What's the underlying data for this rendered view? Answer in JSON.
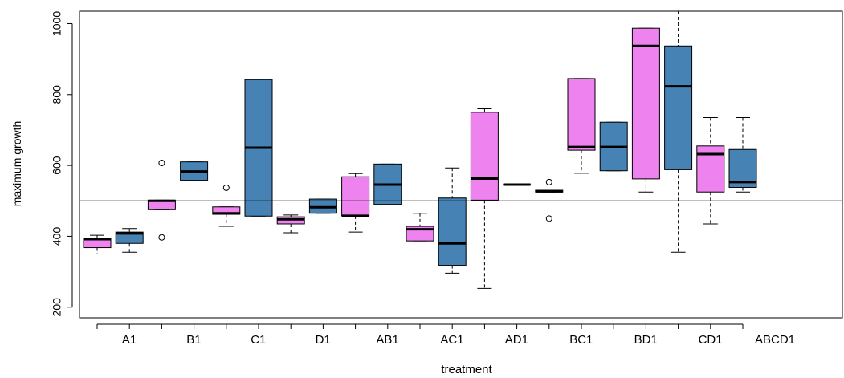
{
  "chart_data": {
    "type": "boxplot",
    "xlabel": "treatment",
    "ylabel": "maximum growth",
    "ylim": [
      170,
      1035
    ],
    "yticks": [
      200,
      400,
      600,
      800,
      1000
    ],
    "x_tick_labels": [
      "A1",
      "B1",
      "C1",
      "D1",
      "AB1",
      "AC1",
      "AD1",
      "BC1",
      "BD1",
      "CD1",
      "ABCD1"
    ],
    "reference_line": 500,
    "colors": {
      "pink": "#ee82ee",
      "blue": "#4682b4"
    },
    "boxes": [
      {
        "group": "A1",
        "fill": "pink",
        "whisker_low": 350,
        "q1": 368,
        "median": 392,
        "q3": 395,
        "whisker_high": 403,
        "outliers": []
      },
      {
        "group": "A1",
        "fill": "blue",
        "whisker_low": 355,
        "q1": 380,
        "median": 408,
        "q3": 412,
        "whisker_high": 422,
        "outliers": []
      },
      {
        "group": "B1",
        "fill": "pink",
        "whisker_low": 475,
        "q1": 475,
        "median": 500,
        "q3": 502,
        "whisker_high": 502,
        "outliers": [
          607,
          397
        ]
      },
      {
        "group": "B1",
        "fill": "blue",
        "whisker_low": 558,
        "q1": 558,
        "median": 583,
        "q3": 610,
        "whisker_high": 610,
        "outliers": []
      },
      {
        "group": "C1",
        "fill": "pink",
        "whisker_low": 428,
        "q1": 462,
        "median": 465,
        "q3": 483,
        "whisker_high": 483,
        "outliers": [
          537
        ]
      },
      {
        "group": "C1",
        "fill": "blue",
        "whisker_low": 457,
        "q1": 457,
        "median": 650,
        "q3": 842,
        "whisker_high": 842,
        "outliers": []
      },
      {
        "group": "D1",
        "fill": "pink",
        "whisker_low": 410,
        "q1": 435,
        "median": 448,
        "q3": 455,
        "whisker_high": 460,
        "outliers": []
      },
      {
        "group": "D1",
        "fill": "blue",
        "whisker_low": 465,
        "q1": 465,
        "median": 482,
        "q3": 505,
        "whisker_high": 505,
        "outliers": []
      },
      {
        "group": "AB1",
        "fill": "pink",
        "whisker_low": 412,
        "q1": 458,
        "median": 458,
        "q3": 568,
        "whisker_high": 577,
        "outliers": []
      },
      {
        "group": "AB1",
        "fill": "blue",
        "whisker_low": 490,
        "q1": 490,
        "median": 546,
        "q3": 604,
        "whisker_high": 604,
        "outliers": []
      },
      {
        "group": "AC1",
        "fill": "pink",
        "whisker_low": 387,
        "q1": 387,
        "median": 420,
        "q3": 428,
        "whisker_high": 465,
        "outliers": []
      },
      {
        "group": "AC1",
        "fill": "blue",
        "whisker_low": 296,
        "q1": 318,
        "median": 380,
        "q3": 508,
        "whisker_high": 593,
        "outliers": []
      },
      {
        "group": "AD1",
        "fill": "pink",
        "whisker_low": 253,
        "q1": 502,
        "median": 563,
        "q3": 750,
        "whisker_high": 760,
        "outliers": []
      },
      {
        "group": "AD1",
        "fill": "blue",
        "whisker_low": 546,
        "q1": 546,
        "median": 546,
        "q3": 546,
        "whisker_high": 546,
        "outliers": []
      },
      {
        "group": "BC1",
        "fill": "pink",
        "whisker_low": 525,
        "q1": 525,
        "median": 527,
        "q3": 530,
        "whisker_high": 530,
        "outliers": [
          553,
          450
        ]
      },
      {
        "group": "BD1",
        "fill": "pink",
        "whisker_low": 578,
        "q1": 643,
        "median": 652,
        "q3": 845,
        "whisker_high": 845,
        "outliers": []
      },
      {
        "group": "BD1",
        "fill": "blue",
        "whisker_low": 585,
        "q1": 585,
        "median": 652,
        "q3": 722,
        "whisker_high": 722,
        "outliers": []
      },
      {
        "group": "CD1",
        "fill": "pink",
        "whisker_low": 525,
        "q1": 562,
        "median": 937,
        "q3": 987,
        "whisker_high": 987,
        "outliers": []
      },
      {
        "group": "CD1",
        "fill": "blue",
        "whisker_low": 355,
        "q1": 588,
        "median": 823,
        "q3": 937,
        "whisker_high": 1035,
        "outliers": []
      },
      {
        "group": "ABCD1",
        "fill": "pink",
        "whisker_low": 435,
        "q1": 525,
        "median": 632,
        "q3": 655,
        "whisker_high": 735,
        "outliers": []
      },
      {
        "group": "ABCD1",
        "fill": "blue",
        "whisker_low": 525,
        "q1": 538,
        "median": 553,
        "q3": 645,
        "whisker_high": 735,
        "outliers": []
      }
    ]
  }
}
